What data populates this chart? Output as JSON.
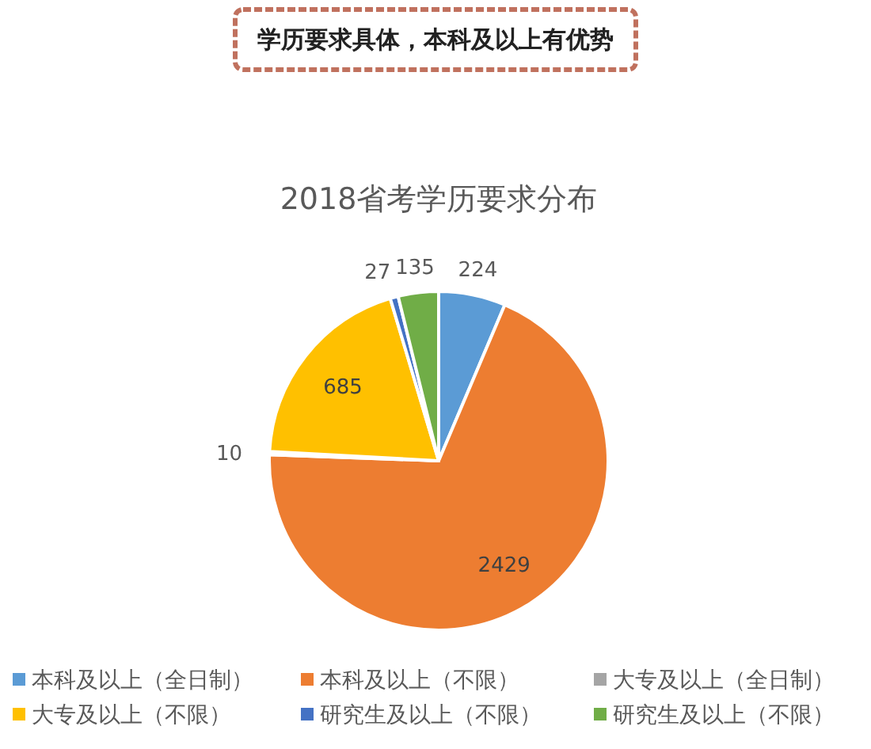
{
  "chart_data": {
    "type": "pie",
    "title": "2018省考学历要求分布",
    "annotations": [
      "学历要求具体，本科及以上有优势"
    ],
    "categories": [
      "本科及以上（全日制）",
      "本科及以上（不限）",
      "大专及以上（全日制）",
      "大专及以上（不限）",
      "研究生及以上（不限）",
      "研究生及以上（不限）"
    ],
    "values": [
      224,
      2429,
      10,
      685,
      27,
      135
    ],
    "colors": [
      "#5b9bd5",
      "#ed7d31",
      "#a5a5a5",
      "#ffc000",
      "#4472c4",
      "#70ad47"
    ],
    "data_labels": true,
    "legend": "bottom"
  }
}
